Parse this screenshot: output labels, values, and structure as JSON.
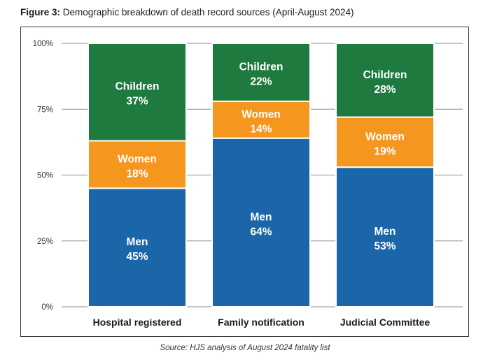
{
  "figure": {
    "label": "Figure 3:",
    "title": "Demographic breakdown of death record sources (April-August 2024)",
    "source": "Source: HJS analysis of August 2024 fatality list"
  },
  "chart_data": {
    "type": "bar",
    "stacked": true,
    "categories": [
      "Hospital registered",
      "Family notification",
      "Judicial Committee"
    ],
    "series": [
      {
        "name": "Men",
        "values": [
          45,
          64,
          53
        ],
        "color": "#1a66a8"
      },
      {
        "name": "Women",
        "values": [
          18,
          14,
          19
        ],
        "color": "#f5961e"
      },
      {
        "name": "Children",
        "values": [
          37,
          22,
          28
        ],
        "color": "#1e7a3e"
      }
    ],
    "value_suffix": "%",
    "yticks": [
      "0%",
      "25%",
      "50%",
      "75%",
      "100%"
    ],
    "ylim": [
      0,
      100
    ],
    "grid": true,
    "legend": "none",
    "segment_border_color": "#ffffff",
    "grid_color": "#8c8c8c"
  }
}
